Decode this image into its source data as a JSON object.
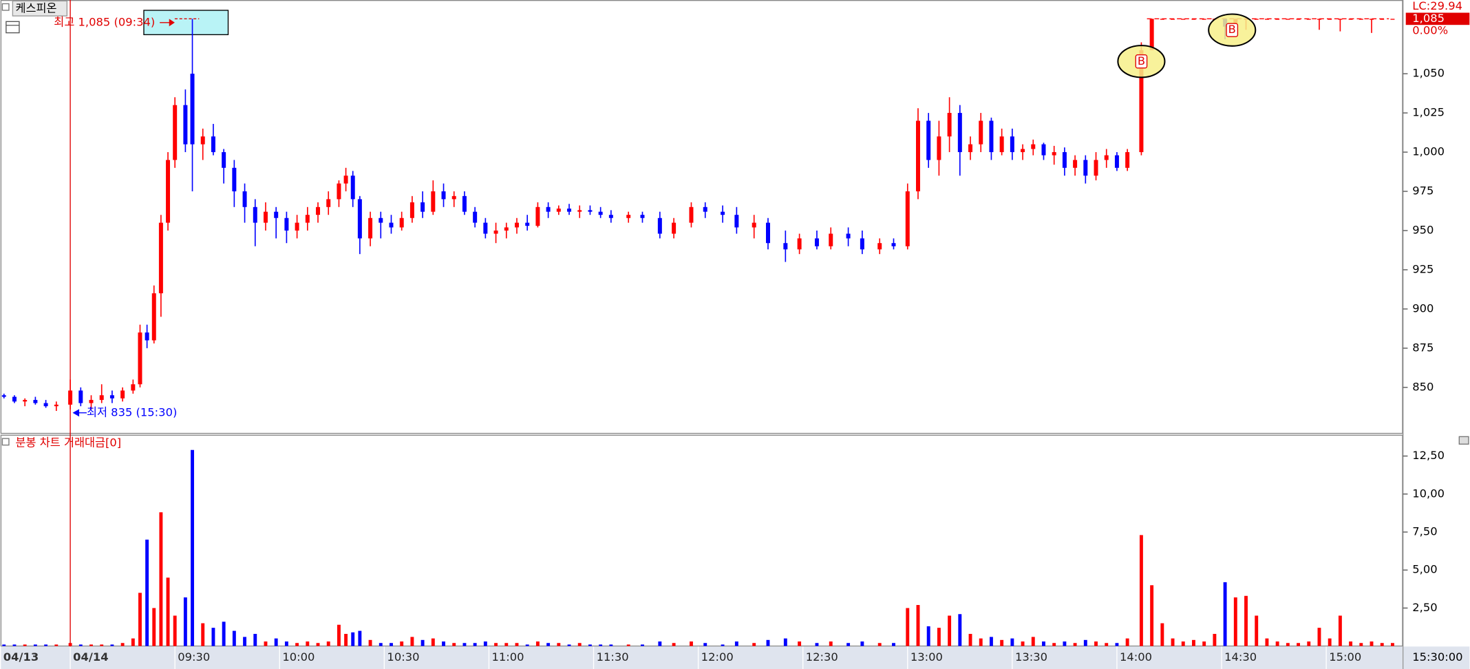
{
  "chart_data": {
    "type": "candlestick",
    "title": "케스피온",
    "x": [
      -19,
      -16,
      -13,
      -10,
      -7,
      -4,
      0,
      3,
      6,
      9,
      12,
      15,
      18,
      20,
      22,
      24,
      26,
      28,
      30,
      33,
      35,
      38,
      41,
      44,
      47,
      50,
      53,
      56,
      59,
      62,
      65,
      68,
      71,
      74,
      77,
      79,
      81,
      83,
      86,
      89,
      92,
      95,
      98,
      101,
      104,
      107,
      110,
      113,
      116,
      119,
      122,
      125,
      128,
      131,
      134,
      137,
      140,
      143,
      146,
      149,
      152,
      155,
      160,
      164,
      169,
      173,
      178,
      182,
      187,
      191,
      196,
      200,
      205,
      209,
      214,
      218,
      223,
      227,
      232,
      236,
      240,
      243,
      246,
      249,
      252,
      255,
      258,
      261,
      264,
      267,
      270,
      273,
      276,
      279,
      282,
      285,
      288,
      291,
      294,
      297,
      300,
      303,
      307,
      310,
      313,
      316,
      319,
      322,
      325,
      328,
      331,
      334,
      337,
      340,
      343,
      346,
      349,
      352,
      355,
      358,
      361,
      364,
      367,
      370,
      373,
      376,
      379
    ],
    "ohlc": [
      [
        845,
        846,
        843,
        844
      ],
      [
        844,
        845,
        840,
        841
      ],
      [
        841,
        843,
        838,
        842
      ],
      [
        842,
        844,
        839,
        840
      ],
      [
        840,
        842,
        837,
        838
      ],
      [
        838,
        841,
        835,
        839
      ],
      [
        839,
        855,
        836,
        848
      ],
      [
        848,
        850,
        838,
        840
      ],
      [
        840,
        845,
        836,
        842
      ],
      [
        842,
        852,
        840,
        845
      ],
      [
        845,
        848,
        840,
        843
      ],
      [
        843,
        850,
        841,
        848
      ],
      [
        848,
        855,
        846,
        852
      ],
      [
        852,
        890,
        850,
        885
      ],
      [
        885,
        890,
        875,
        880
      ],
      [
        880,
        915,
        878,
        910
      ],
      [
        910,
        960,
        895,
        955
      ],
      [
        955,
        1000,
        950,
        995
      ],
      [
        995,
        1035,
        990,
        1030
      ],
      [
        1030,
        1040,
        1000,
        1005
      ],
      [
        1050,
        1085,
        975,
        1005
      ],
      [
        1005,
        1015,
        995,
        1010
      ],
      [
        1010,
        1018,
        998,
        1000
      ],
      [
        1000,
        1002,
        980,
        990
      ],
      [
        990,
        995,
        965,
        975
      ],
      [
        975,
        980,
        955,
        965
      ],
      [
        965,
        970,
        940,
        955
      ],
      [
        955,
        968,
        950,
        962
      ],
      [
        962,
        965,
        945,
        958
      ],
      [
        958,
        962,
        942,
        950
      ],
      [
        950,
        960,
        945,
        955
      ],
      [
        955,
        965,
        950,
        960
      ],
      [
        960,
        968,
        955,
        965
      ],
      [
        965,
        975,
        960,
        970
      ],
      [
        970,
        982,
        965,
        980
      ],
      [
        980,
        990,
        975,
        985
      ],
      [
        985,
        988,
        965,
        970
      ],
      [
        970,
        972,
        935,
        945
      ],
      [
        945,
        962,
        940,
        958
      ],
      [
        958,
        962,
        945,
        955
      ],
      [
        955,
        960,
        948,
        952
      ],
      [
        952,
        962,
        950,
        958
      ],
      [
        958,
        972,
        955,
        968
      ],
      [
        968,
        975,
        958,
        962
      ],
      [
        962,
        982,
        960,
        975
      ],
      [
        975,
        980,
        965,
        970
      ],
      [
        970,
        975,
        965,
        972
      ],
      [
        972,
        975,
        960,
        962
      ],
      [
        962,
        965,
        952,
        955
      ],
      [
        955,
        958,
        945,
        948
      ],
      [
        948,
        955,
        942,
        950
      ],
      [
        950,
        955,
        945,
        952
      ],
      [
        952,
        958,
        948,
        955
      ],
      [
        955,
        960,
        950,
        953
      ],
      [
        953,
        968,
        952,
        965
      ],
      [
        965,
        968,
        958,
        962
      ],
      [
        962,
        966,
        960,
        964
      ],
      [
        964,
        967,
        960,
        962
      ],
      [
        962,
        966,
        958,
        963
      ],
      [
        963,
        966,
        960,
        962
      ],
      [
        962,
        965,
        958,
        960
      ],
      [
        960,
        963,
        955,
        958
      ],
      [
        958,
        962,
        955,
        960
      ],
      [
        960,
        962,
        955,
        958
      ],
      [
        958,
        962,
        945,
        948
      ],
      [
        948,
        958,
        945,
        955
      ],
      [
        955,
        968,
        952,
        965
      ],
      [
        965,
        968,
        958,
        962
      ],
      [
        962,
        966,
        955,
        960
      ],
      [
        960,
        965,
        948,
        952
      ],
      [
        952,
        960,
        945,
        955
      ],
      [
        955,
        958,
        938,
        942
      ],
      [
        942,
        950,
        930,
        938
      ],
      [
        938,
        948,
        935,
        945
      ],
      [
        945,
        950,
        938,
        940
      ],
      [
        940,
        952,
        938,
        948
      ],
      [
        948,
        952,
        940,
        945
      ],
      [
        945,
        950,
        935,
        938
      ],
      [
        938,
        945,
        935,
        942
      ],
      [
        942,
        945,
        938,
        940
      ],
      [
        940,
        980,
        938,
        975
      ],
      [
        975,
        1028,
        970,
        1020
      ],
      [
        1020,
        1025,
        990,
        995
      ],
      [
        995,
        1020,
        985,
        1010
      ],
      [
        1010,
        1035,
        1000,
        1025
      ],
      [
        1025,
        1030,
        985,
        1000
      ],
      [
        1000,
        1010,
        995,
        1005
      ],
      [
        1005,
        1025,
        1000,
        1020
      ],
      [
        1020,
        1022,
        995,
        1000
      ],
      [
        1000,
        1015,
        998,
        1010
      ],
      [
        1010,
        1015,
        995,
        1000
      ],
      [
        1000,
        1005,
        995,
        1002
      ],
      [
        1002,
        1008,
        998,
        1005
      ],
      [
        1005,
        1006,
        995,
        998
      ],
      [
        998,
        1004,
        992,
        1000
      ],
      [
        1000,
        1003,
        985,
        990
      ],
      [
        990,
        998,
        985,
        995
      ],
      [
        995,
        998,
        980,
        985
      ],
      [
        985,
        1000,
        982,
        995
      ],
      [
        995,
        1002,
        990,
        998
      ],
      [
        998,
        1000,
        988,
        990
      ],
      [
        990,
        1002,
        988,
        1000
      ],
      [
        1000,
        1070,
        998,
        1065
      ],
      [
        1065,
        1085,
        1065,
        1085
      ],
      [
        1085,
        1085,
        1085,
        1085
      ],
      [
        1085,
        1085,
        1085,
        1085
      ],
      [
        1085,
        1085,
        1085,
        1085
      ],
      [
        1085,
        1085,
        1085,
        1085
      ],
      [
        1085,
        1085,
        1085,
        1085
      ],
      [
        1085,
        1085,
        1085,
        1085
      ],
      [
        1085,
        1085,
        1072,
        1080
      ],
      [
        1080,
        1085,
        1075,
        1085
      ],
      [
        1085,
        1085,
        1078,
        1085
      ],
      [
        1085,
        1085,
        1085,
        1085
      ],
      [
        1085,
        1085,
        1085,
        1085
      ],
      [
        1085,
        1085,
        1085,
        1085
      ],
      [
        1085,
        1085,
        1085,
        1085
      ],
      [
        1085,
        1085,
        1085,
        1085
      ],
      [
        1085,
        1085,
        1085,
        1085
      ],
      [
        1085,
        1085,
        1078,
        1085
      ],
      [
        1085,
        1085,
        1085,
        1085
      ],
      [
        1085,
        1085,
        1077,
        1085
      ],
      [
        1085,
        1085,
        1085,
        1085
      ],
      [
        1085,
        1085,
        1085,
        1085
      ],
      [
        1085,
        1085,
        1076,
        1085
      ],
      [
        1085,
        1085,
        1085,
        1085
      ],
      [
        1085,
        1085,
        1085,
        1085
      ]
    ],
    "up_color": "#ff0000",
    "down_color": "#0000ff",
    "xlim": [
      -20,
      382
    ],
    "xticks": [
      {
        "value": -20,
        "label": "04/13"
      },
      {
        "value": 0,
        "label": "04/14"
      },
      {
        "value": 30,
        "label": "09:30"
      },
      {
        "value": 60,
        "label": "10:00"
      },
      {
        "value": 90,
        "label": "10:30"
      },
      {
        "value": 120,
        "label": "11:00"
      },
      {
        "value": 150,
        "label": "11:30"
      },
      {
        "value": 180,
        "label": "12:00"
      },
      {
        "value": 210,
        "label": "12:30"
      },
      {
        "value": 240,
        "label": "13:00"
      },
      {
        "value": 270,
        "label": "13:30"
      },
      {
        "value": 300,
        "label": "14:00"
      },
      {
        "value": 330,
        "label": "14:30"
      },
      {
        "value": 360,
        "label": "15:00"
      }
    ],
    "ylim": [
      821,
      1097
    ],
    "yticks": [
      850,
      875,
      900,
      925,
      950,
      975,
      {
        "value": 1000,
        "label": "1,000"
      },
      {
        "value": 1025,
        "label": "1,025"
      },
      {
        "value": 1050,
        "label": "1,050"
      }
    ],
    "annotations": [
      {
        "text": "최고 1,085 (09:34)",
        "value": 1085
      },
      {
        "text": "최저 835 (15:30)",
        "value": 835
      }
    ],
    "buy_markers": [
      {
        "label": "B",
        "x": 307,
        "value": 1065
      },
      {
        "label": "B",
        "x": 333,
        "value": 1085
      }
    ],
    "last_price": {
      "label": "1,085",
      "value": 1085
    },
    "change_label": "0.00%",
    "lc_label": "LC:29.94",
    "time_label": "15:30:00",
    "volume": {
      "title": "분봉 차트 거래대금[0]",
      "values": [
        0.1,
        0.1,
        0.1,
        0.1,
        0.1,
        0.1,
        0.2,
        0.1,
        0.1,
        0.1,
        0.1,
        0.2,
        0.5,
        3.5,
        7.0,
        2.5,
        8.8,
        4.5,
        2.0,
        3.2,
        12.9,
        1.5,
        1.2,
        1.6,
        1.0,
        0.6,
        0.8,
        0.3,
        0.5,
        0.3,
        0.2,
        0.3,
        0.2,
        0.3,
        1.4,
        0.8,
        0.9,
        1.0,
        0.4,
        0.2,
        0.2,
        0.3,
        0.6,
        0.4,
        0.5,
        0.3,
        0.2,
        0.2,
        0.2,
        0.3,
        0.2,
        0.2,
        0.2,
        0.1,
        0.3,
        0.2,
        0.2,
        0.1,
        0.2,
        0.1,
        0.1,
        0.1,
        0.1,
        0.1,
        0.3,
        0.2,
        0.3,
        0.2,
        0.1,
        0.3,
        0.2,
        0.4,
        0.5,
        0.3,
        0.2,
        0.3,
        0.2,
        0.3,
        0.2,
        0.2,
        2.5,
        2.7,
        1.3,
        1.2,
        2.0,
        2.1,
        0.8,
        0.5,
        0.6,
        0.4,
        0.5,
        0.3,
        0.6,
        0.3,
        0.2,
        0.3,
        0.2,
        0.4,
        0.3,
        0.2,
        0.2,
        0.5,
        7.3,
        4.0,
        1.5,
        0.5,
        0.3,
        0.4,
        0.3,
        0.8,
        4.2,
        3.2,
        3.3,
        2.0,
        0.5,
        0.3,
        0.2,
        0.2,
        0.3,
        1.2,
        0.5,
        2.0,
        0.3,
        0.2,
        0.3,
        0.2,
        0.2
      ],
      "ylim": [
        0,
        13.9
      ],
      "yticks": [
        {
          "value": 2.5,
          "label": "2,50"
        },
        {
          "value": 5,
          "label": "5,00"
        },
        {
          "value": 7.5,
          "label": "7,50"
        },
        {
          "value": 10,
          "label": "10,00"
        },
        {
          "value": 12.5,
          "label": "12,50"
        }
      ]
    }
  }
}
